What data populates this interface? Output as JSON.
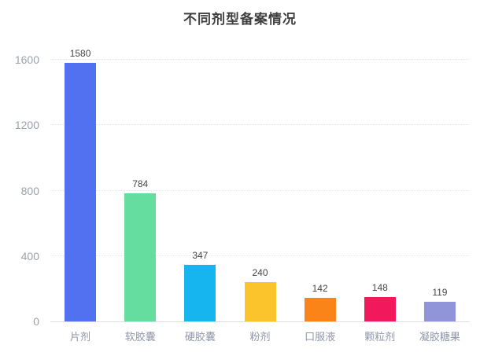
{
  "chart_data": {
    "type": "bar",
    "title": "不同剂型备案情况",
    "categories": [
      "片剂",
      "软胶囊",
      "硬胶囊",
      "粉剂",
      "口服液",
      "颗粒剂",
      "凝胶糖果"
    ],
    "values": [
      1580,
      784,
      347,
      240,
      142,
      148,
      119
    ],
    "bar_colors": [
      "#5271f0",
      "#64dd9e",
      "#16b5ef",
      "#fcc42c",
      "#fa8418",
      "#f1195b",
      "#9094d8"
    ],
    "xlabel": "",
    "ylabel": "",
    "ylim": [
      0,
      1600
    ],
    "yticks": [
      0,
      400,
      800,
      1200,
      1600
    ],
    "grid": "horizontal-dotted",
    "legend_position": "none",
    "value_labels": "above-bars"
  },
  "style": {
    "axis_label_color": "#9aa1ad",
    "x_label_color": "#8f96a8",
    "value_label_color": "#464646",
    "title_color": "#3f3f3f",
    "gridline_color": "#e4e4ec",
    "baseline_color": "#dddde3",
    "background_color": "#ffffff"
  }
}
